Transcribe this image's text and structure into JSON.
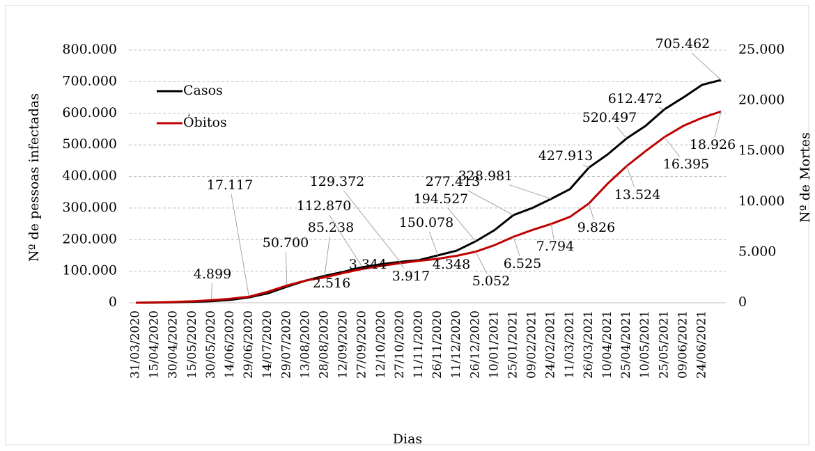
{
  "chart_data": {
    "type": "line",
    "xlabel": "Dias",
    "ylabel": "Nº de pessoas infectadas",
    "y2label": "Nº de Mortes",
    "categories": [
      "31/03/2020",
      "15/04/2020",
      "30/04/2020",
      "15/05/2020",
      "30/05/2020",
      "14/06/2020",
      "29/06/2020",
      "14/07/2020",
      "29/07/2020",
      "13/08/2020",
      "28/08/2020",
      "12/09/2020",
      "27/09/2020",
      "12/10/2020",
      "27/10/2020",
      "11/11/2020",
      "26/11/2020",
      "11/12/2020",
      "26/12/2020",
      "10/01/2021",
      "25/01/2021",
      "09/02/2021",
      "24/02/2021",
      "11/03/2021",
      "26/03/2021",
      "10/04/2021",
      "25/04/2021",
      "10/05/2021",
      "25/05/2021",
      "09/06/2021",
      "24/06/2021",
      null
    ],
    "series": [
      {
        "name": "Casos",
        "color": "#000000",
        "axis": "y",
        "values": [
          0,
          500,
          1500,
          3000,
          4899,
          9000,
          17117,
          30000,
          50700,
          70000,
          85238,
          98000,
          112870,
          122000,
          129372,
          135000,
          150078,
          165000,
          194527,
          230000,
          277413,
          300000,
          328981,
          360000,
          427913,
          470000,
          520497,
          560000,
          612472,
          650000,
          690000,
          705462
        ],
        "value_labels": [
          null,
          null,
          null,
          null,
          "4.899",
          null,
          "17.117",
          null,
          "50.700",
          null,
          "85.238",
          null,
          "112.870",
          null,
          "129.372",
          null,
          "150.078",
          null,
          "194.527",
          null,
          "277.413",
          null,
          "328.981",
          null,
          "427.913",
          null,
          "520.497",
          null,
          "612.472",
          null,
          null,
          "705.462"
        ]
      },
      {
        "name": "Óbitos",
        "color": "#c00000",
        "axis": "y2",
        "values": [
          0,
          30,
          80,
          150,
          250,
          400,
          600,
          1100,
          1700,
          2200,
          2516,
          2950,
          3344,
          3650,
          3917,
          4150,
          4348,
          4650,
          5052,
          5700,
          6525,
          7200,
          7794,
          8500,
          9826,
          11800,
          13524,
          15000,
          16395,
          17500,
          18300,
          18926
        ],
        "value_labels": [
          null,
          null,
          null,
          null,
          null,
          null,
          null,
          null,
          null,
          null,
          "2.516",
          null,
          "3.344",
          null,
          "3.917",
          null,
          "4.348",
          null,
          "5.052",
          null,
          "6.525",
          null,
          "7.794",
          null,
          "9.826",
          null,
          "13.524",
          null,
          "16.395",
          null,
          null,
          "18.926"
        ]
      }
    ],
    "ylim": [
      0,
      800000
    ],
    "yticks": [
      0,
      {
        "value": 100000,
        "label": "100.000"
      },
      {
        "value": 200000,
        "label": "200.000"
      },
      {
        "value": 300000,
        "label": "300.000"
      },
      {
        "value": 400000,
        "label": "400.000"
      },
      {
        "value": 500000,
        "label": "500.000"
      },
      {
        "value": 600000,
        "label": "600.000"
      },
      {
        "value": 700000,
        "label": "700.000"
      },
      {
        "value": 800000,
        "label": "800.000"
      }
    ],
    "y2lim": [
      0,
      25000
    ],
    "y2ticks": [
      0,
      {
        "value": 5000,
        "label": "5.000"
      },
      {
        "value": 10000,
        "label": "10.000"
      },
      {
        "value": 15000,
        "label": "15.000"
      },
      {
        "value": 20000,
        "label": "20.000"
      },
      {
        "value": 25000,
        "label": "25.000"
      }
    ],
    "grid": true,
    "legend": "upper left"
  }
}
